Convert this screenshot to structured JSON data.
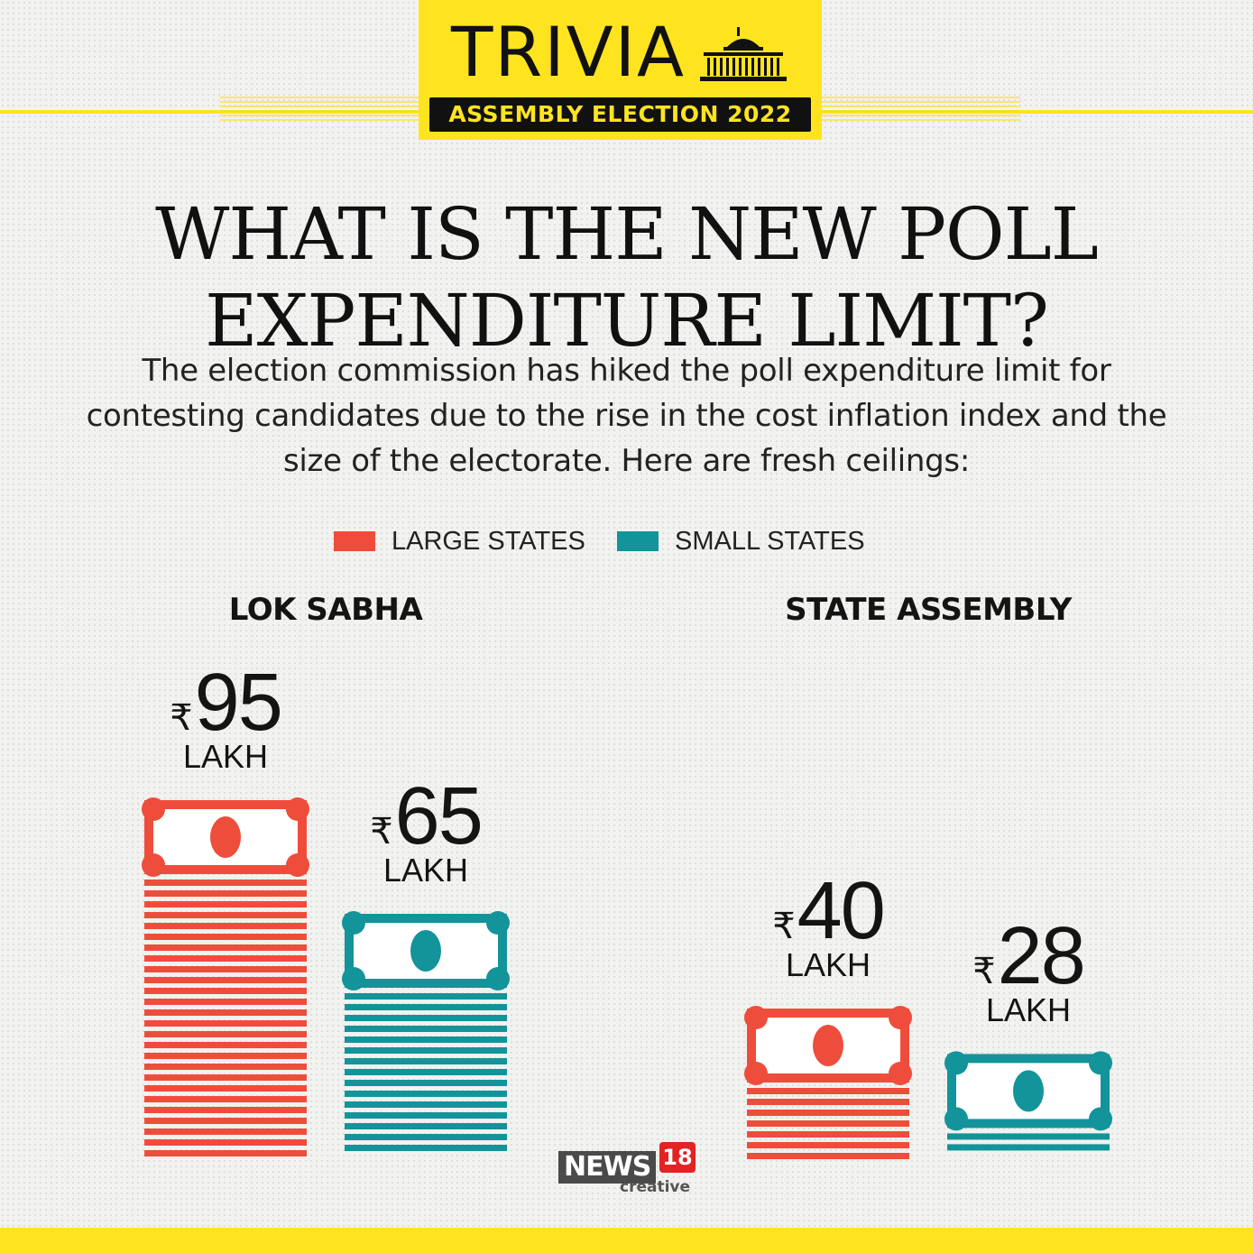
{
  "colors": {
    "yellow": "#fde41e",
    "large": "#ef4d3c",
    "small": "#13949a",
    "dark": "#111111",
    "logo_red": "#e32223"
  },
  "badge": {
    "title": "TRIVIA",
    "subtitle": "ASSEMBLY ELECTION 2022",
    "icon": "parliament-icon"
  },
  "heading": {
    "line1": "WHAT IS THE NEW POLL",
    "line2": "EXPENDITURE LIMIT?"
  },
  "intro": "The election commission has hiked the poll expenditure limit for contesting candidates due to the rise in the cost inflation index and the size of the electorate. Here are fresh ceilings:",
  "logo": {
    "brand": "NEWS",
    "number": "18",
    "tag": "creative"
  },
  "chart_data": {
    "type": "bar",
    "title": "",
    "unit": "LAKH",
    "currency": "₹",
    "legend_position": "top-center",
    "categories": [
      "LOK SABHA",
      "STATE ASSEMBLY"
    ],
    "series": [
      {
        "name": "LARGE STATES",
        "values": [
          95,
          40
        ]
      },
      {
        "name": "SMALL STATES",
        "values": [
          65,
          28
        ]
      }
    ]
  }
}
